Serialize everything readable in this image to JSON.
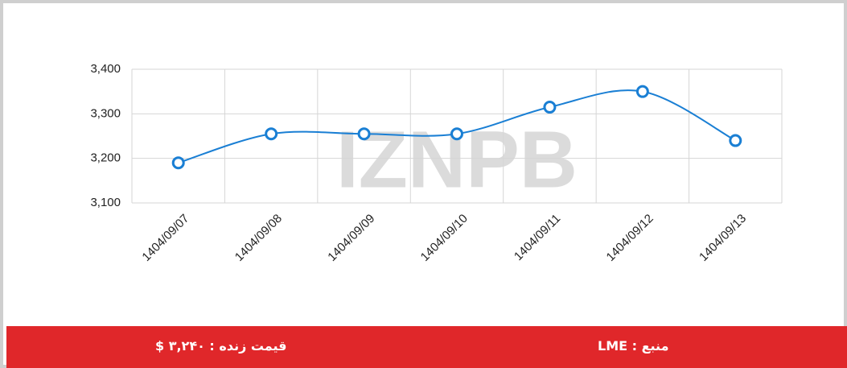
{
  "chart_data": {
    "type": "line",
    "watermark": "IZNPB",
    "categories": [
      "1404/09/07",
      "1404/09/08",
      "1404/09/09",
      "1404/09/10",
      "1404/09/11",
      "1404/09/12",
      "1404/09/13"
    ],
    "series": [
      {
        "color": "#1a7fd4",
        "values": [
          3190,
          3255,
          3255,
          3255,
          3315,
          3350,
          3240
        ]
      }
    ],
    "ylim": [
      3100,
      3400
    ],
    "yticks": [
      {
        "value": 3100,
        "label": "3,100"
      },
      {
        "value": 3200,
        "label": "3,200"
      },
      {
        "value": 3300,
        "label": "3,300"
      },
      {
        "value": 3400,
        "label": "3,400"
      }
    ],
    "grid": true
  },
  "footer": {
    "price": "قیمت زنده : ۳,۲۴۰ $",
    "source": "منبع : LME"
  }
}
